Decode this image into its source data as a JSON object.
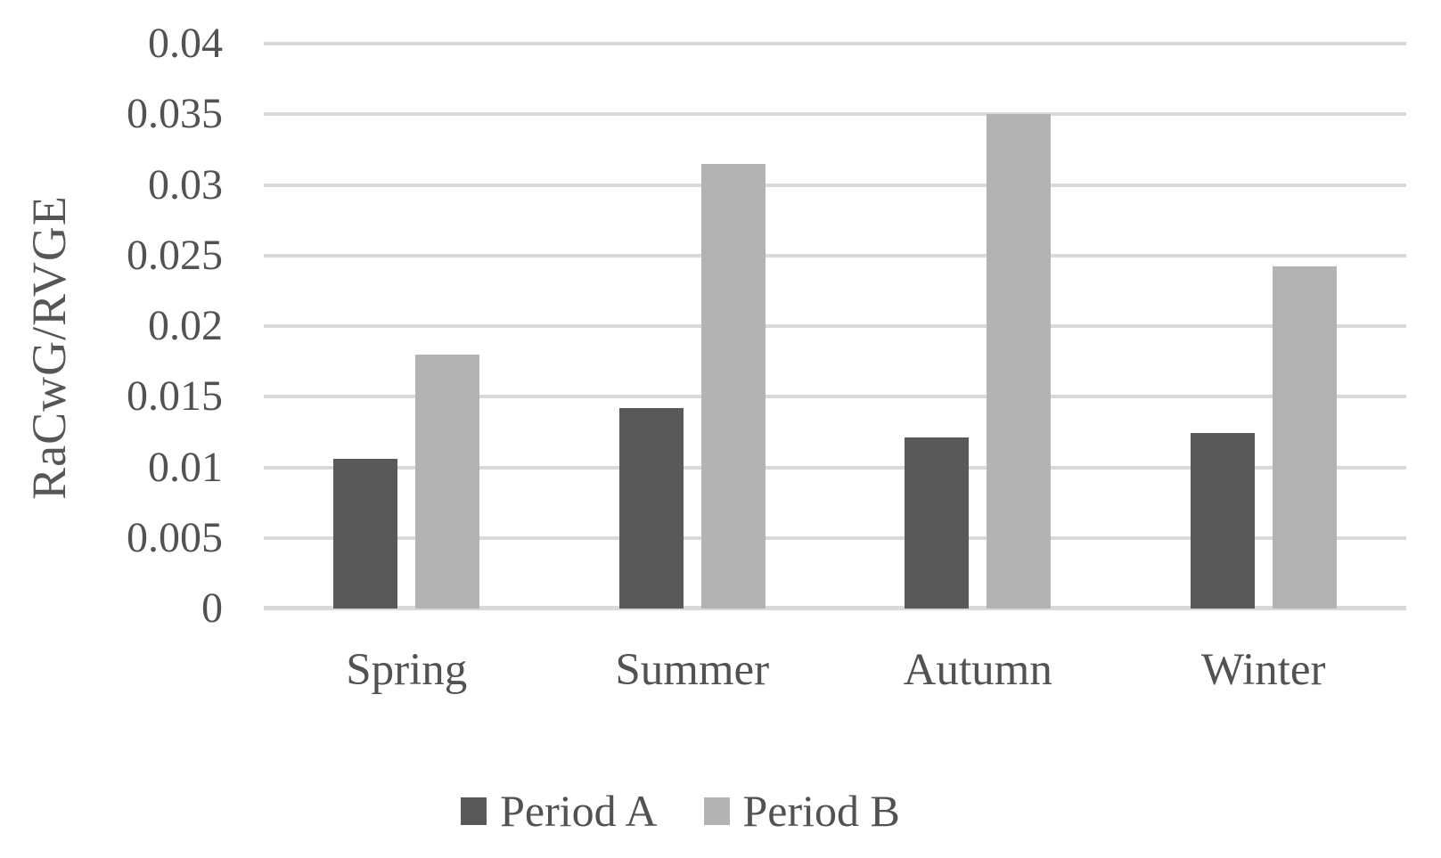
{
  "chart_data": {
    "type": "bar",
    "title": "",
    "xlabel": "",
    "ylabel": "RaCwG/RVGE",
    "categories": [
      "Spring",
      "Summer",
      "Autumn",
      "Winter"
    ],
    "series": [
      {
        "name": "Period A",
        "color": "#595959",
        "values": [
          0.0106,
          0.0142,
          0.0121,
          0.0124
        ]
      },
      {
        "name": "Period B",
        "color": "#b3b3b3",
        "values": [
          0.018,
          0.0315,
          0.035,
          0.0242
        ]
      }
    ],
    "ylim": [
      0,
      0.04
    ],
    "ytick_step": 0.005,
    "ytick_labels": [
      "0",
      "0.005",
      "0.01",
      "0.015",
      "0.02",
      "0.025",
      "0.03",
      "0.035",
      "0.04"
    ],
    "grid": "horizontal",
    "gridline_color": "#d9d9d9",
    "axis_line_color": "#d9d9d9",
    "text_color": "#525252",
    "legend_position": "bottom"
  }
}
